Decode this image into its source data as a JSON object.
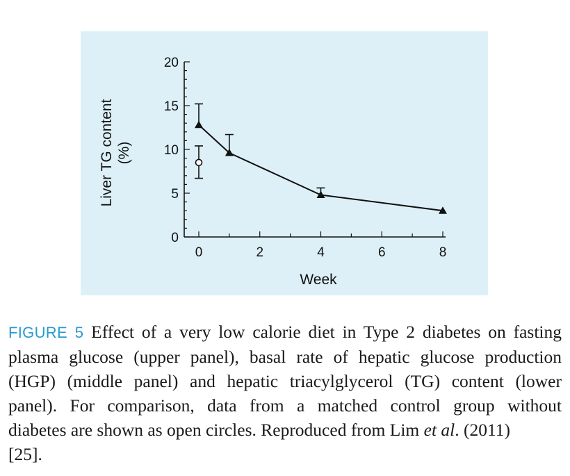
{
  "chart_data": {
    "type": "line",
    "xlabel": "Week",
    "ylabel_line1": "Liver TG content",
    "ylabel_line2": "(%)",
    "xlim": [
      0,
      8
    ],
    "ylim": [
      0,
      20
    ],
    "x_ticks": [
      0,
      2,
      4,
      6,
      8
    ],
    "y_ticks": [
      0,
      5,
      10,
      15,
      20
    ],
    "grid": false,
    "series": [
      {
        "marker": "filled-triangle",
        "line": true,
        "color": "#111111",
        "points": [
          {
            "x": 0,
            "y": 12.8,
            "err": 2.4
          },
          {
            "x": 1,
            "y": 9.6,
            "err": 2.1
          },
          {
            "x": 4,
            "y": 4.8,
            "err": 0.8
          },
          {
            "x": 8,
            "y": 3.0,
            "err": 0
          }
        ]
      },
      {
        "marker": "open-circle",
        "line": false,
        "color": "#111111",
        "points": [
          {
            "x": 0,
            "y": 8.5,
            "err_up": 1.9,
            "err_down": 1.8
          }
        ]
      }
    ]
  },
  "caption": {
    "label": "FIGURE 5",
    "line1": "Effect of a very low calorie diet in Type 2 diabetes on fasting",
    "line2": "plasma glucose (upper panel), basal rate of hepatic glucose production",
    "line3": "(HGP) (middle panel) and hepatic triacylglycerol (TG) content (lower",
    "line4": "panel). For comparison, data from a matched control group without",
    "line5_a": "diabetes are shown as open circles. Reproduced from Lim ",
    "line5_b": "et al",
    "line5_c": ". (2011)",
    "line6": "[25]."
  }
}
